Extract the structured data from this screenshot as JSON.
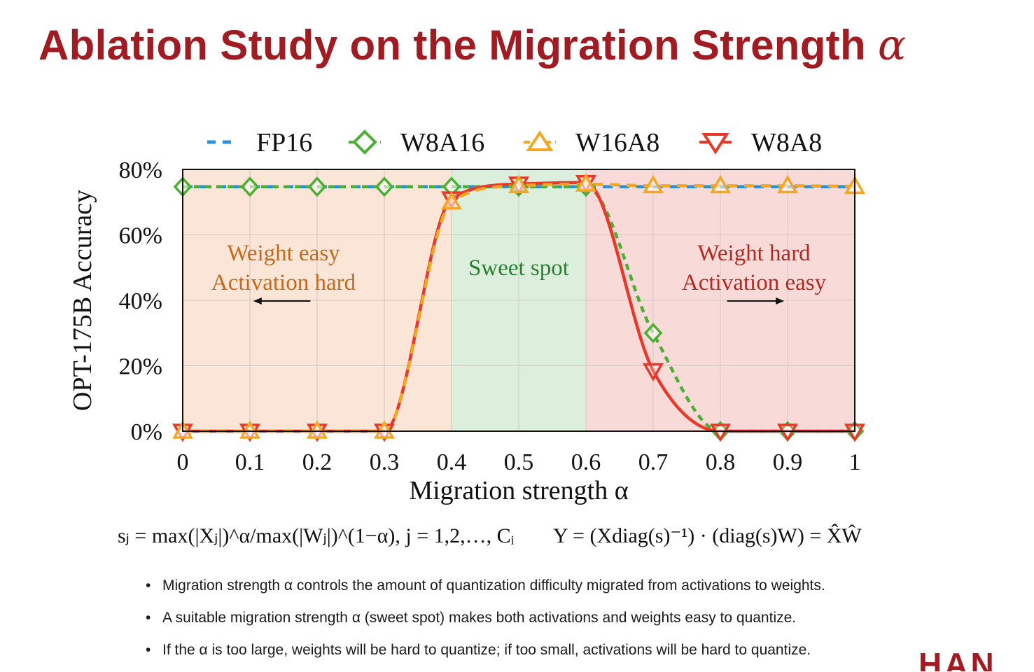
{
  "slide": {
    "title": "Ablation Study on the Migration Strength",
    "title_symbol": "α",
    "formula_left": "sⱼ = max(|Xⱼ|)^α/max(|Wⱼ|)^(1−α), j = 1,2,…, Cᵢ",
    "formula_right": "Y = (Xdiag(s)⁻¹) · (diag(s)W) = X̂Ŵ",
    "bullets": [
      "Migration strength α controls the amount of quantization difficulty migrated from activations to weights.",
      "A suitable migration strength α (sweet spot) makes both activations and weights easy to quantize.",
      "If the α is too large, weights will be hard to quantize; if too small, activations will be hard to quantize."
    ],
    "logo_text": "HAN"
  },
  "chart_data": {
    "type": "line",
    "xlabel": "Migration strength α",
    "ylabel": "OPT-175B Accuracy",
    "x": [
      0,
      0.1,
      0.2,
      0.3,
      0.4,
      0.5,
      0.6,
      0.7,
      0.8,
      0.9,
      1
    ],
    "x_tick_labels": [
      "0",
      "0.1",
      "0.2",
      "0.3",
      "0.4",
      "0.5",
      "0.6",
      "0.7",
      "0.8",
      "0.9",
      "1"
    ],
    "xlim": [
      0,
      1
    ],
    "ylim": [
      0,
      80
    ],
    "y_ticks": [
      0,
      20,
      40,
      60,
      80
    ],
    "y_tick_labels": [
      "0%",
      "20%",
      "40%",
      "60%",
      "80%"
    ],
    "grid": true,
    "legend_position": "top",
    "series": [
      {
        "name": "FP16",
        "color": "#2f8fd8",
        "style": "dashed",
        "marker": "none",
        "values": [
          74.7,
          74.7,
          74.7,
          74.7,
          74.7,
          74.7,
          74.7,
          74.7,
          74.7,
          74.7,
          74.7
        ]
      },
      {
        "name": "W8A16",
        "color": "#4caf33",
        "style": "dotted",
        "marker": "diamond",
        "values": [
          74.7,
          74.7,
          74.7,
          74.7,
          74.7,
          74.7,
          74.7,
          30,
          0,
          0,
          0
        ]
      },
      {
        "name": "W16A8",
        "color": "#f5a623",
        "style": "dashed",
        "marker": "triangle-up",
        "values": [
          0,
          0,
          0,
          0,
          70,
          75,
          75.5,
          75,
          75,
          75,
          74.8
        ]
      },
      {
        "name": "W8A8",
        "color": "#e8382a",
        "style": "solid",
        "marker": "triangle-down",
        "values": [
          0,
          0,
          0,
          0,
          71,
          75.5,
          76,
          18.5,
          0,
          0,
          0
        ]
      }
    ],
    "regions": [
      {
        "from": 0,
        "to": 0.4,
        "color": "#fbe5d6",
        "label_lines": [
          "Weight easy",
          "Activation hard"
        ],
        "label_color": "#c46a1a",
        "arrow": "left"
      },
      {
        "from": 0.4,
        "to": 0.6,
        "color": "#dcefdc",
        "label_lines": [
          "Sweet spot"
        ],
        "label_color": "#2e7d32",
        "arrow": "none"
      },
      {
        "from": 0.6,
        "to": 1,
        "color": "#f8dbd8",
        "label_lines": [
          "Weight hard",
          "Activation easy"
        ],
        "label_color": "#b5281f",
        "arrow": "right"
      }
    ]
  }
}
